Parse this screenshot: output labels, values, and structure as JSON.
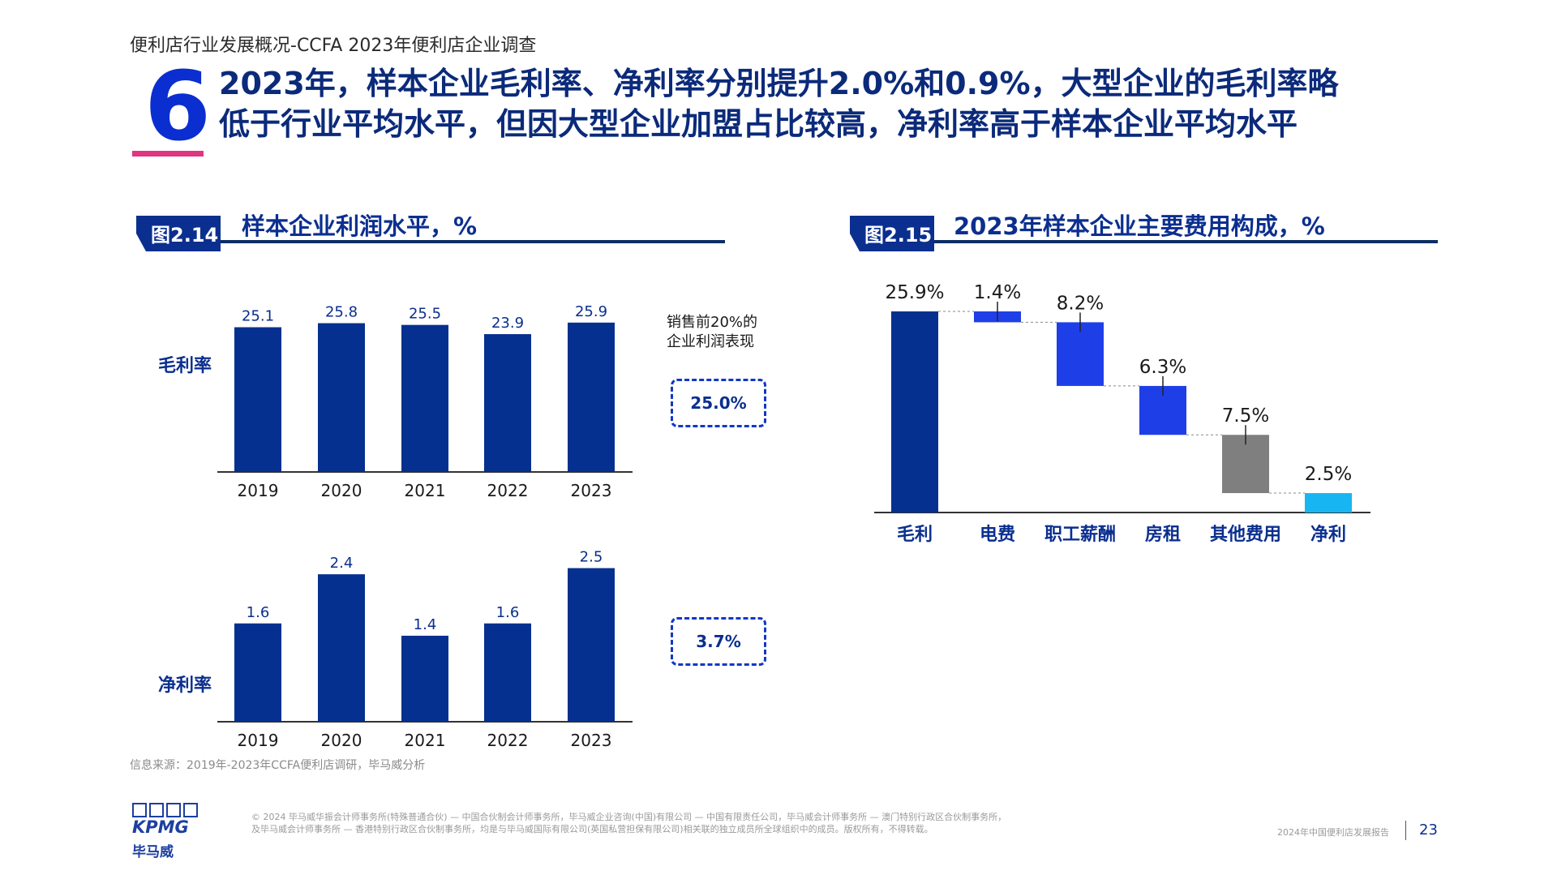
{
  "header": {
    "breadcrumb": "便利店行业发展概况-CCFA 2023年便利店企业调查",
    "section_number": "6",
    "headline_line1": "2023年，样本企业毛利率、净利率分别提升2.0%和0.9%，大型企业的毛利率略",
    "headline_line2": "低于行业平均水平，但因大型企业加盟占比较高，净利率高于样本企业平均水平"
  },
  "colors": {
    "navy": "#05308f",
    "blue": "#1e3fe8",
    "grey": "#7f7f7f",
    "cyan": "#17b6f2",
    "accent_pink": "#e0357f"
  },
  "left_figure": {
    "badge": "图2.14",
    "title": "样本企业利润水平，%",
    "gross_row_label": "毛利率",
    "net_row_label": "净利率",
    "top20_note_line1": "销售前20%的",
    "top20_note_line2": "企业利润表现",
    "top20_gross": "25.0%",
    "top20_net": "3.7%",
    "source": "信息来源：2019年-2023年CCFA便利店调研，毕马威分析"
  },
  "right_figure": {
    "badge": "图2.15",
    "title": "2023年样本企业主要费用构成，%"
  },
  "chart_data": [
    {
      "type": "bar",
      "categories": [
        "2019",
        "2020",
        "2021",
        "2022",
        "2023"
      ],
      "values": [
        25.1,
        25.8,
        25.5,
        23.9,
        25.9
      ],
      "value_labels": [
        "25.1",
        "25.8",
        "25.5",
        "23.9",
        "25.9"
      ],
      "ylim": [
        0,
        27
      ]
    },
    {
      "type": "bar",
      "categories": [
        "2019",
        "2020",
        "2021",
        "2022",
        "2023"
      ],
      "values": [
        1.6,
        2.4,
        1.4,
        1.6,
        2.5
      ],
      "value_labels": [
        "1.6",
        "2.4",
        "1.4",
        "1.6",
        "2.5"
      ],
      "ylim": [
        0,
        2.6
      ]
    },
    {
      "type": "bar",
      "subtype": "waterfall",
      "categories": [
        "毛利",
        "电费",
        "职工薪酬",
        "房租",
        "其他费用",
        "净利"
      ],
      "values": [
        25.9,
        1.4,
        8.2,
        6.3,
        7.5,
        2.5
      ],
      "value_labels": [
        "25.9%",
        "1.4%",
        "8.2%",
        "6.3%",
        "7.5%",
        "2.5%"
      ],
      "ylim": [
        0,
        25.9
      ]
    }
  ],
  "footer": {
    "logo_text": "KPMG",
    "logo_cn": "毕马威",
    "legal_line1": "© 2024 毕马威华振会计师事务所(特殊普通合伙) — 中国合伙制会计师事务所，毕马威企业咨询(中国)有限公司 — 中国有限责任公司，毕马威会计师事务所 — 澳门特别行政区合伙制事务所，",
    "legal_line2": "及毕马威会计师事务所 — 香港特别行政区合伙制事务所，均是与毕马威国际有限公司(英国私营担保有限公司)相关联的独立成员所全球组织中的成员。版权所有，不得转载。",
    "report_name": "2024年中国便利店发展报告",
    "page_number": "23"
  }
}
